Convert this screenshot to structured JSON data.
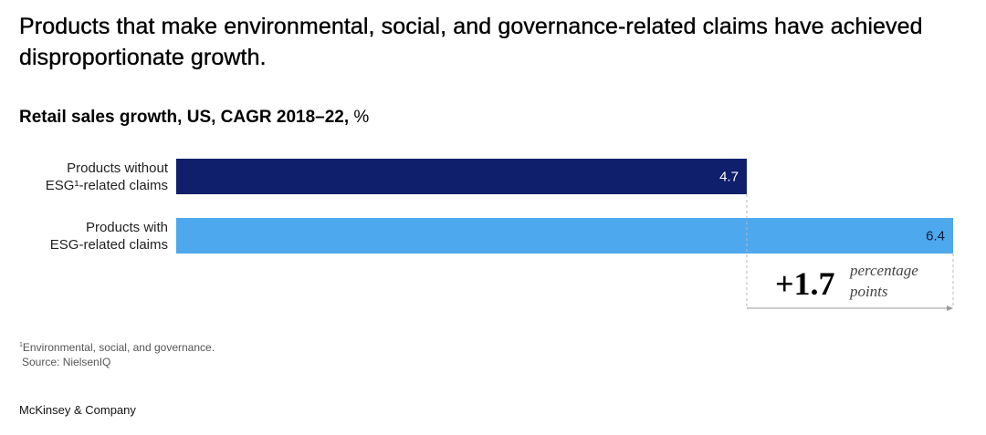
{
  "title": "Products that make environmental, social, and governance-related claims have achieved disproportionate growth.",
  "subtitle": {
    "main": "Retail sales growth, US, CAGR 2018–22,",
    "unit": "%"
  },
  "chart_data": {
    "type": "bar",
    "orientation": "horizontal",
    "categories": [
      [
        "Products without",
        "ESG¹-related claims"
      ],
      [
        "Products with",
        "ESG-related claims"
      ]
    ],
    "values": [
      4.7,
      6.4
    ],
    "value_labels": [
      "4.7",
      "6.4"
    ],
    "colors": [
      "#0f1f6b",
      "#4da8ee"
    ],
    "label_colors": [
      "#ffffff",
      "#0b1a3a"
    ],
    "xlim": [
      0,
      6.4
    ],
    "grid": false,
    "annotation": {
      "value": "+1.7",
      "line1": "percentage",
      "line2": "points"
    }
  },
  "footnote": {
    "marker": "1",
    "text": "Environmental, social, and governance.",
    "source": "Source: NielsenIQ"
  },
  "brand": "McKinsey & Company"
}
